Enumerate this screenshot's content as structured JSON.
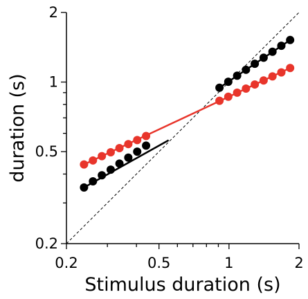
{
  "chart_data": {
    "type": "scatter",
    "title": "",
    "xlabel": "Stimulus duration (s)",
    "ylabel": "duration (s)",
    "xscale": "log",
    "yscale": "log",
    "xlim": [
      0.2,
      2
    ],
    "ylim": [
      0.2,
      2
    ],
    "x_ticks_major": [
      0.2,
      0.5,
      1,
      2
    ],
    "x_tick_labels": [
      "0.2",
      "0.5",
      "1",
      "2"
    ],
    "y_ticks_major": [
      0.2,
      0.5,
      1,
      2
    ],
    "y_tick_labels": [
      "0.2",
      "0.5",
      "1",
      "2"
    ],
    "minor_ticks": [
      0.3,
      0.4,
      0.6,
      0.7,
      0.8,
      0.9
    ],
    "grid": false,
    "legend": "none",
    "identity_line": true,
    "colors": {
      "black_series": "#000000",
      "red_series": "#e8352b"
    },
    "series": [
      {
        "color": "black_series",
        "x": [
          0.238,
          0.26,
          0.284,
          0.31,
          0.338,
          0.369,
          0.403,
          0.44,
          0.91,
          0.993,
          1.084,
          1.183,
          1.291,
          1.409,
          1.538,
          1.679,
          1.832
        ],
        "y": [
          0.35,
          0.372,
          0.395,
          0.418,
          0.444,
          0.471,
          0.5,
          0.531,
          0.945,
          1.003,
          1.065,
          1.13,
          1.2,
          1.274,
          1.352,
          1.435,
          1.52
        ],
        "fits": [
          {
            "x": [
              0.238,
              0.55
            ],
            "y": [
              0.35,
              0.56
            ]
          },
          {
            "x": [
              0.91,
              1.832
            ],
            "y": [
              0.945,
              1.52
            ]
          }
        ]
      },
      {
        "color": "red_series",
        "x": [
          0.238,
          0.26,
          0.284,
          0.31,
          0.338,
          0.369,
          0.403,
          0.44,
          0.91,
          0.993,
          1.084,
          1.183,
          1.291,
          1.409,
          1.538,
          1.679,
          1.832
        ],
        "y": [
          0.44,
          0.458,
          0.478,
          0.497,
          0.518,
          0.539,
          0.561,
          0.584,
          0.83,
          0.864,
          0.9,
          0.937,
          0.976,
          1.016,
          1.058,
          1.101,
          1.15
        ],
        "fits": [
          {
            "x": [
              0.238,
              1.832
            ],
            "y": [
              0.44,
              1.15
            ]
          }
        ]
      }
    ]
  }
}
